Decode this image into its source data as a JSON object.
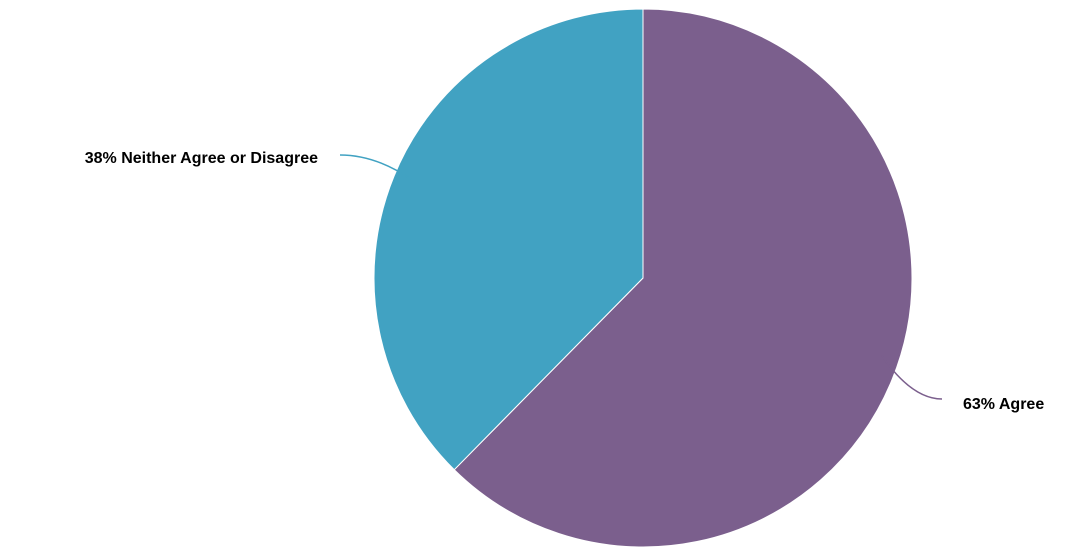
{
  "chart_data": {
    "type": "pie",
    "title": "",
    "slices": [
      {
        "label": "Agree",
        "value": 63,
        "display": "63% Agree",
        "color": "#7b5f8d"
      },
      {
        "label": "Neither Agree or Disagree",
        "value": 38,
        "display": "38% Neither Agree or Disagree",
        "color": "#41a2c2"
      }
    ],
    "start_at": "12 o'clock",
    "direction": "clockwise",
    "legend": "none"
  }
}
